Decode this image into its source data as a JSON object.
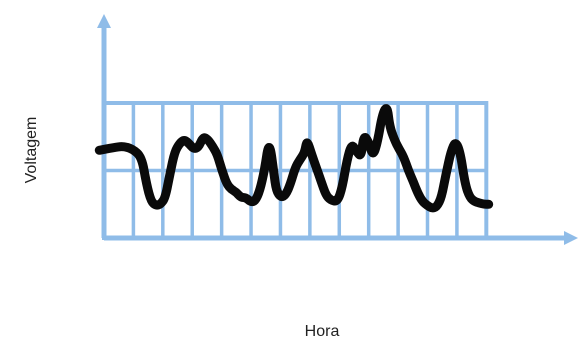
{
  "chart_data": {
    "type": "line",
    "xlabel": "Hora",
    "ylabel": "Voltagem",
    "grid": true,
    "x_ticks": [],
    "y_ticks": [],
    "xlim": [
      0,
      100
    ],
    "ylim": [
      0,
      100
    ],
    "grid_columns": 13,
    "grid_rows": 2,
    "grid_x_range": [
      0,
      81
    ],
    "grid_y_range": [
      0,
      100
    ],
    "series": [
      {
        "values": [
          [
            -1,
            65
          ],
          [
            2,
            67
          ],
          [
            4,
            68
          ],
          [
            6,
            66
          ],
          [
            8,
            60
          ],
          [
            9,
            40
          ],
          [
            10,
            27
          ],
          [
            11,
            24
          ],
          [
            12,
            25
          ],
          [
            13,
            30
          ],
          [
            14,
            48
          ],
          [
            15,
            64
          ],
          [
            16,
            70
          ],
          [
            17,
            73
          ],
          [
            18,
            70
          ],
          [
            19,
            66
          ],
          [
            20,
            67
          ],
          [
            21,
            75
          ],
          [
            22,
            73
          ],
          [
            23,
            68
          ],
          [
            24,
            62
          ],
          [
            25,
            50
          ],
          [
            26,
            40
          ],
          [
            27,
            36
          ],
          [
            28,
            34
          ],
          [
            29,
            30
          ],
          [
            30,
            30
          ],
          [
            31,
            27
          ],
          [
            32,
            27
          ],
          [
            33,
            35
          ],
          [
            34,
            50
          ],
          [
            35,
            73
          ],
          [
            36,
            48
          ],
          [
            36.5,
            35
          ],
          [
            37.5,
            30
          ],
          [
            38.5,
            32
          ],
          [
            39.5,
            40
          ],
          [
            40.5,
            52
          ],
          [
            41.5,
            58
          ],
          [
            42.5,
            63
          ],
          [
            43,
            73
          ],
          [
            44,
            62
          ],
          [
            45,
            52
          ],
          [
            46,
            42
          ],
          [
            47,
            32
          ],
          [
            48,
            28
          ],
          [
            49.5,
            27
          ],
          [
            50.5,
            38
          ],
          [
            51.5,
            58
          ],
          [
            52.5,
            70
          ],
          [
            53.5,
            64
          ],
          [
            54.5,
            60
          ],
          [
            55,
            76
          ],
          [
            56,
            72
          ],
          [
            57,
            60
          ],
          [
            58,
            72
          ],
          [
            59,
            92
          ],
          [
            60,
            98
          ],
          [
            60.5,
            83
          ],
          [
            61.5,
            73
          ],
          [
            62.5,
            66
          ],
          [
            63.5,
            60
          ],
          [
            64.5,
            50
          ],
          [
            65.5,
            42
          ],
          [
            66.5,
            33
          ],
          [
            67.5,
            27
          ],
          [
            68.5,
            24
          ],
          [
            69.5,
            22
          ],
          [
            70.5,
            23
          ],
          [
            71.5,
            30
          ],
          [
            72.5,
            48
          ],
          [
            73.5,
            64
          ],
          [
            74.5,
            72
          ],
          [
            75.5,
            63
          ],
          [
            76.5,
            40
          ],
          [
            77.5,
            30
          ],
          [
            78.5,
            27
          ],
          [
            79.5,
            26
          ],
          [
            80.5,
            25
          ],
          [
            81.5,
            25
          ]
        ]
      }
    ]
  }
}
